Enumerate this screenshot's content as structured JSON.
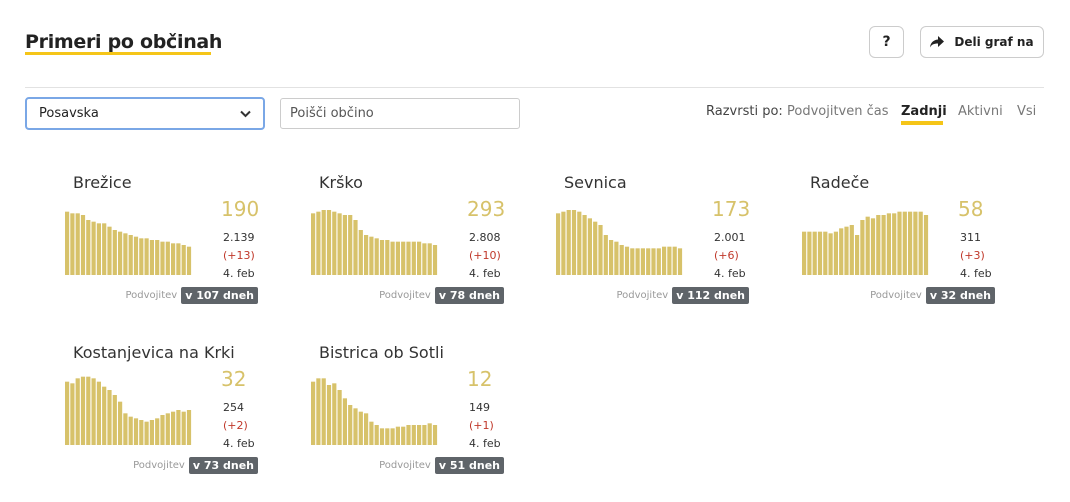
{
  "header": {
    "title": "Primeri po občinah",
    "help_label": "?",
    "share_label": "Deli graf na"
  },
  "filters": {
    "region_selected": "Posavska",
    "search_placeholder": "Poišči občino"
  },
  "sort": {
    "label": "Razvrsti po:",
    "options": [
      "Podvojitven čas",
      "Zadnji",
      "Aktivni",
      "Vsi"
    ],
    "active": "Zadnji"
  },
  "colors": {
    "accent": "#f5c518",
    "bar": "#d7c26a",
    "delta": "#c0392b",
    "chip": "#5f6469"
  },
  "municipalities": [
    {
      "name": "Brežice",
      "active": "190",
      "total": "2.139",
      "delta": "(+13)",
      "date": "4. feb",
      "doubling_label": "Podvojitev",
      "doubling": "v 107 dneh",
      "series": [
        38,
        37,
        37,
        36,
        33,
        32,
        31,
        31,
        29,
        27,
        26,
        25,
        24,
        23,
        22,
        22,
        21,
        21,
        20,
        20,
        19,
        19,
        18,
        17
      ]
    },
    {
      "name": "Krško",
      "active": "293",
      "total": "2.808",
      "delta": "(+10)",
      "date": "4. feb",
      "doubling_label": "Podvojitev",
      "doubling": "v 78 dneh",
      "series": [
        37,
        38,
        39,
        39,
        38,
        37,
        36,
        36,
        33,
        27,
        24,
        23,
        22,
        21,
        21,
        20,
        20,
        20,
        20,
        20,
        20,
        19,
        19,
        18
      ]
    },
    {
      "name": "Sevnica",
      "active": "173",
      "total": "2.001",
      "delta": "(+6)",
      "date": "4. feb",
      "doubling_label": "Podvojitev",
      "doubling": "v 112 dneh",
      "series": [
        37,
        38,
        39,
        39,
        38,
        36,
        34,
        32,
        30,
        24,
        21,
        20,
        18,
        17,
        16,
        16,
        16,
        16,
        16,
        16,
        17,
        17,
        17,
        16
      ]
    },
    {
      "name": "Radeče",
      "active": "58",
      "total": "311",
      "delta": "(+3)",
      "date": "4. feb",
      "doubling_label": "Podvojitev",
      "doubling": "v 32 dneh",
      "series": [
        26,
        26,
        26,
        26,
        26,
        25,
        26,
        28,
        29,
        30,
        24,
        33,
        35,
        34,
        36,
        36,
        37,
        37,
        38,
        38,
        38,
        38,
        38,
        36
      ]
    },
    {
      "name": "Kostanjevica na Krki",
      "active": "32",
      "total": "254",
      "delta": "(+2)",
      "date": "4. feb",
      "doubling_label": "Podvojitev",
      "doubling": "v 73 dneh",
      "series": [
        38,
        37,
        40,
        41,
        41,
        40,
        38,
        35,
        33,
        30,
        26,
        19,
        17,
        16,
        15,
        14,
        15,
        16,
        18,
        19,
        20,
        21,
        20,
        21
      ]
    },
    {
      "name": "Bistrica ob Sotli",
      "active": "12",
      "total": "149",
      "delta": "(+1)",
      "date": "4. feb",
      "doubling_label": "Podvojitev",
      "doubling": "v 51 dneh",
      "series": [
        38,
        40,
        40,
        36,
        37,
        33,
        28,
        24,
        22,
        20,
        19,
        14,
        12,
        10,
        10,
        10,
        11,
        11,
        12,
        12,
        12,
        12,
        13,
        12
      ]
    }
  ]
}
